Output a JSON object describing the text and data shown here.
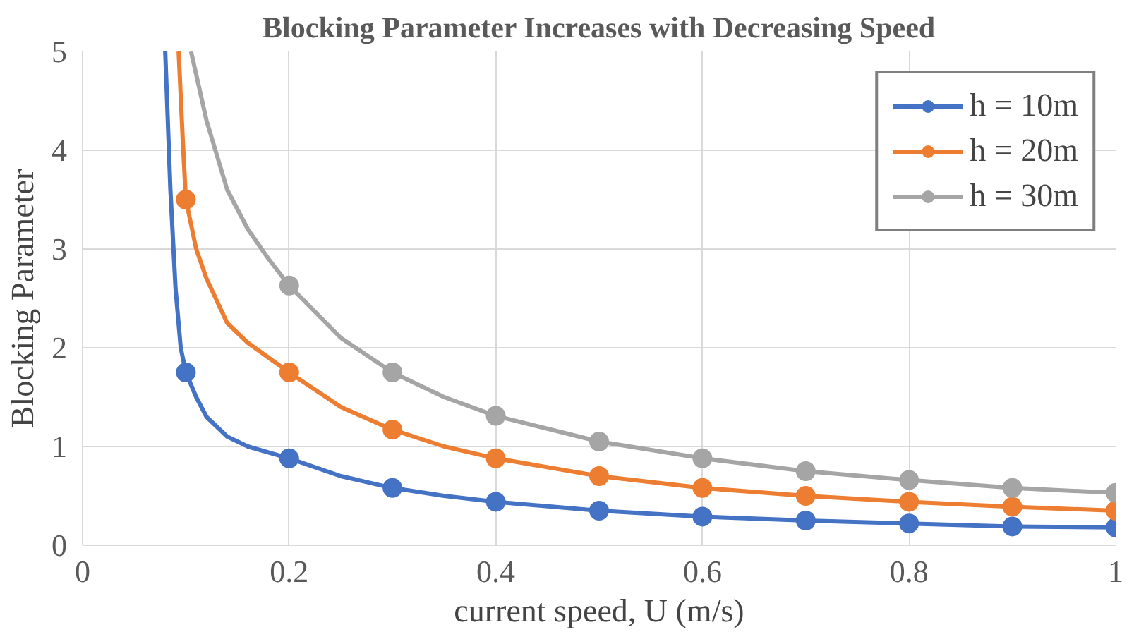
{
  "chart_data": {
    "type": "line",
    "title": "Blocking Parameter Increases with Decreasing Speed",
    "xlabel": "current speed, U (m/s)",
    "ylabel": "Blocking Parameter",
    "xlim": [
      0,
      1
    ],
    "ylim": [
      0,
      5
    ],
    "xticks": [
      0,
      0.2,
      0.4,
      0.6,
      0.8,
      1
    ],
    "yticks": [
      0,
      1,
      2,
      3,
      4,
      5
    ],
    "grid": true,
    "legend": "top right",
    "line_style": "solid",
    "series": [
      {
        "name": "h = 10m",
        "color": "#4472c4",
        "marker": "none",
        "x": [
          0.08,
          0.085,
          0.09,
          0.095,
          0.1,
          0.11,
          0.12,
          0.14,
          0.16,
          0.2,
          0.25,
          0.3,
          0.35,
          0.4,
          0.5,
          0.6,
          0.7,
          0.8,
          0.9,
          1.0
        ],
        "values": [
          5,
          3.6,
          2.6,
          2.0,
          1.75,
          1.5,
          1.3,
          1.1,
          1.0,
          0.88,
          0.7,
          0.58,
          0.5,
          0.44,
          0.35,
          0.29,
          0.25,
          0.22,
          0.19,
          0.18
        ]
      },
      {
        "color": "#4472c4",
        "type": "scatter",
        "marker": "circle",
        "x": [
          0.1,
          0.2,
          0.3,
          0.4,
          0.5,
          0.6,
          0.7,
          0.8,
          0.9,
          1.0
        ],
        "values": [
          1.75,
          0.88,
          0.58,
          0.44,
          0.35,
          0.29,
          0.25,
          0.22,
          0.19,
          0.18
        ]
      },
      {
        "name": "h = 20m",
        "color": "#ed7d31",
        "marker": "none",
        "x": [
          0.093,
          0.097,
          0.1,
          0.11,
          0.12,
          0.14,
          0.16,
          0.18,
          0.2,
          0.25,
          0.3,
          0.35,
          0.4,
          0.5,
          0.6,
          0.7,
          0.8,
          0.9,
          1.0
        ],
        "values": [
          5,
          4.1,
          3.5,
          3.0,
          2.7,
          2.25,
          2.05,
          1.9,
          1.75,
          1.4,
          1.17,
          1.0,
          0.88,
          0.7,
          0.58,
          0.5,
          0.44,
          0.39,
          0.35
        ]
      },
      {
        "color": "#ed7d31",
        "type": "scatter",
        "marker": "circle",
        "x": [
          0.1,
          0.2,
          0.3,
          0.4,
          0.5,
          0.6,
          0.7,
          0.8,
          0.9,
          1.0
        ],
        "values": [
          3.5,
          1.75,
          1.17,
          0.88,
          0.7,
          0.58,
          0.5,
          0.44,
          0.39,
          0.35
        ]
      },
      {
        "name": "h = 30m",
        "color": "#a5a5a5",
        "marker": "none",
        "x": [
          0.105,
          0.12,
          0.14,
          0.16,
          0.18,
          0.2,
          0.25,
          0.3,
          0.35,
          0.4,
          0.5,
          0.6,
          0.7,
          0.8,
          0.9,
          1.0
        ],
        "values": [
          5,
          4.3,
          3.6,
          3.2,
          2.9,
          2.63,
          2.1,
          1.75,
          1.5,
          1.31,
          1.05,
          0.88,
          0.75,
          0.66,
          0.58,
          0.53
        ]
      },
      {
        "color": "#a5a5a5",
        "type": "scatter",
        "marker": "circle",
        "x": [
          0.2,
          0.3,
          0.4,
          0.5,
          0.6,
          0.7,
          0.8,
          0.9,
          1.0
        ],
        "values": [
          2.63,
          1.75,
          1.31,
          1.05,
          0.88,
          0.75,
          0.66,
          0.58,
          0.53
        ]
      }
    ]
  }
}
